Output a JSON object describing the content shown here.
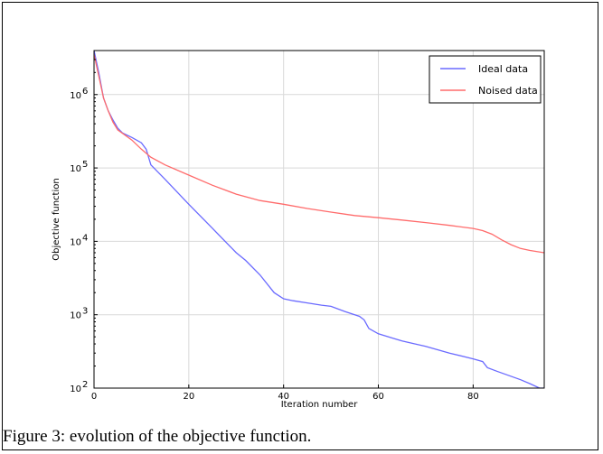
{
  "caption": "Figure 3: evolution of the objective function.",
  "chart_data": {
    "type": "line",
    "title": "",
    "xlabel": "Iteration number",
    "ylabel": "Objective function",
    "xlim": [
      0,
      95
    ],
    "ylim_log10": [
      2,
      6.6
    ],
    "yscale": "log",
    "grid": true,
    "legend_position": "top-right",
    "x_ticks": [
      0,
      20,
      40,
      60,
      80
    ],
    "y_ticks": [
      {
        "exp": 2,
        "label": "10",
        "sup": "2"
      },
      {
        "exp": 3,
        "label": "10",
        "sup": "3"
      },
      {
        "exp": 4,
        "label": "10",
        "sup": "4"
      },
      {
        "exp": 5,
        "label": "10",
        "sup": "5"
      },
      {
        "exp": 6,
        "label": "10",
        "sup": "6"
      }
    ],
    "series": [
      {
        "name": "Ideal data",
        "color": "#6a6aff",
        "points": [
          [
            0,
            4000000
          ],
          [
            1,
            2000000
          ],
          [
            2,
            900000
          ],
          [
            3,
            600000
          ],
          [
            4,
            450000
          ],
          [
            5,
            350000
          ],
          [
            6,
            300000
          ],
          [
            8,
            260000
          ],
          [
            10,
            220000
          ],
          [
            11,
            180000
          ],
          [
            12,
            110000
          ],
          [
            15,
            70000
          ],
          [
            20,
            32000
          ],
          [
            25,
            15000
          ],
          [
            30,
            7000
          ],
          [
            32,
            5500
          ],
          [
            35,
            3500
          ],
          [
            38,
            2000
          ],
          [
            40,
            1650
          ],
          [
            42,
            1550
          ],
          [
            45,
            1450
          ],
          [
            48,
            1350
          ],
          [
            50,
            1300
          ],
          [
            53,
            1100
          ],
          [
            56,
            950
          ],
          [
            57,
            850
          ],
          [
            58,
            650
          ],
          [
            60,
            550
          ],
          [
            63,
            480
          ],
          [
            65,
            440
          ],
          [
            70,
            370
          ],
          [
            75,
            300
          ],
          [
            80,
            250
          ],
          [
            82,
            230
          ],
          [
            83,
            190
          ],
          [
            85,
            170
          ],
          [
            90,
            130
          ],
          [
            92,
            115
          ],
          [
            94,
            100
          ],
          [
            95,
            100
          ]
        ]
      },
      {
        "name": "Noised data",
        "color": "#ff6b6b",
        "points": [
          [
            0,
            3500000
          ],
          [
            1,
            1800000
          ],
          [
            2,
            900000
          ],
          [
            3,
            600000
          ],
          [
            4,
            420000
          ],
          [
            5,
            330000
          ],
          [
            8,
            240000
          ],
          [
            10,
            180000
          ],
          [
            12,
            140000
          ],
          [
            15,
            110000
          ],
          [
            20,
            80000
          ],
          [
            25,
            58000
          ],
          [
            30,
            44000
          ],
          [
            35,
            36000
          ],
          [
            40,
            32000
          ],
          [
            45,
            28000
          ],
          [
            50,
            25000
          ],
          [
            55,
            22500
          ],
          [
            60,
            21000
          ],
          [
            65,
            19500
          ],
          [
            70,
            18000
          ],
          [
            75,
            16500
          ],
          [
            80,
            15000
          ],
          [
            82,
            14000
          ],
          [
            84,
            12500
          ],
          [
            86,
            10500
          ],
          [
            88,
            9000
          ],
          [
            90,
            8000
          ],
          [
            92,
            7500
          ],
          [
            95,
            7000
          ]
        ]
      }
    ]
  }
}
